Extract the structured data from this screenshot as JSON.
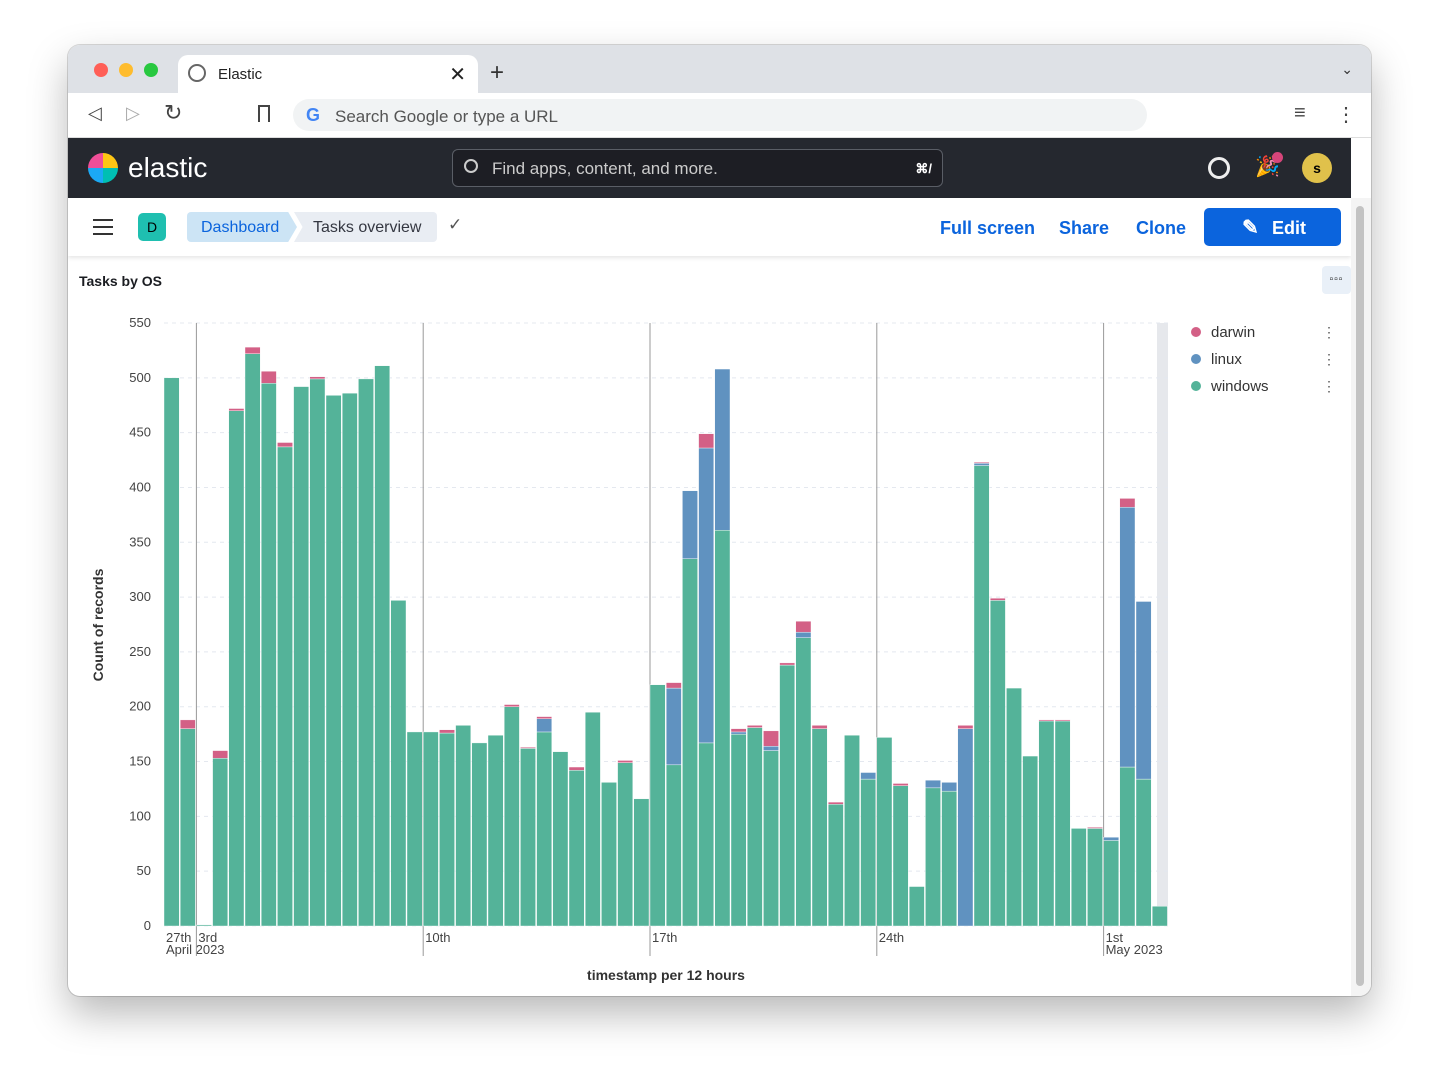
{
  "browser": {
    "tab_title": "Elastic",
    "url_placeholder": "Search Google or type a URL"
  },
  "header": {
    "logo_text": "elastic",
    "search_placeholder": "Find apps, content, and more.",
    "search_shortcut": "⌘/",
    "avatar_initial": "s"
  },
  "toolbar": {
    "space_initial": "D",
    "breadcrumbs": [
      "Dashboard",
      "Tasks overview"
    ],
    "full_screen": "Full screen",
    "share": "Share",
    "clone": "Clone",
    "edit": "Edit"
  },
  "panel": {
    "title": "Tasks by OS"
  },
  "colors": {
    "darwin": "#d36086",
    "linux": "#6092c0",
    "windows": "#54b399",
    "accent": "#0b64dd"
  },
  "chart_data": {
    "type": "bar",
    "stacked": true,
    "title": "Tasks by OS",
    "xlabel": "timestamp per 12 hours",
    "ylabel": "Count of records",
    "ylim": [
      0,
      550
    ],
    "yticks": [
      0,
      50,
      100,
      150,
      200,
      250,
      300,
      350,
      400,
      450,
      500,
      550
    ],
    "xticks": [
      {
        "label": "27th",
        "sub": "April 2023",
        "bar": 0
      },
      {
        "label": "3rd",
        "bar": 2
      },
      {
        "label": "10th",
        "bar": 16
      },
      {
        "label": "17th",
        "bar": 30
      },
      {
        "label": "24th",
        "bar": 44
      },
      {
        "label": "1st",
        "sub": "May 2023",
        "bar": 58
      }
    ],
    "legend": [
      "darwin",
      "linux",
      "windows"
    ],
    "legend_position": "right",
    "series": [
      {
        "name": "windows",
        "values": [
          500,
          180,
          1,
          153,
          470,
          522,
          495,
          437,
          492,
          499,
          484,
          486,
          499,
          511,
          297,
          177,
          177,
          176,
          183,
          167,
          174,
          200,
          162,
          177,
          159,
          142,
          195,
          131,
          149,
          116,
          220,
          147,
          335,
          167,
          361,
          175,
          181,
          160,
          238,
          263,
          180,
          111,
          174,
          134,
          172,
          128,
          36,
          126,
          123,
          0,
          420,
          297,
          217,
          155,
          187,
          187,
          89,
          89,
          78,
          145,
          134,
          18
        ]
      },
      {
        "name": "linux",
        "values": [
          0,
          0,
          0,
          0,
          0,
          0,
          0,
          0,
          0,
          0,
          0,
          0,
          0,
          0,
          0,
          0,
          0,
          0,
          0,
          0,
          0,
          0,
          0,
          12,
          0,
          0,
          0,
          0,
          0,
          0,
          0,
          70,
          62,
          269,
          147,
          2,
          0,
          4,
          0,
          5,
          0,
          0,
          0,
          6,
          0,
          0,
          0,
          7,
          8,
          180,
          2,
          0,
          0,
          0,
          0,
          0,
          0,
          0,
          3,
          237,
          162,
          0
        ]
      },
      {
        "name": "darwin",
        "values": [
          0,
          8,
          0,
          7,
          2,
          6,
          11,
          4,
          0,
          2,
          0,
          0,
          0,
          0,
          0,
          0,
          0,
          3,
          0,
          0,
          0,
          2,
          1,
          2,
          0,
          3,
          0,
          0,
          2,
          0,
          0,
          5,
          0,
          13,
          0,
          3,
          2,
          14,
          2,
          10,
          3,
          2,
          0,
          0,
          0,
          2,
          0,
          0,
          0,
          3,
          1,
          2,
          0,
          0,
          1,
          1,
          0,
          1,
          0,
          8,
          0,
          0
        ]
      }
    ]
  }
}
